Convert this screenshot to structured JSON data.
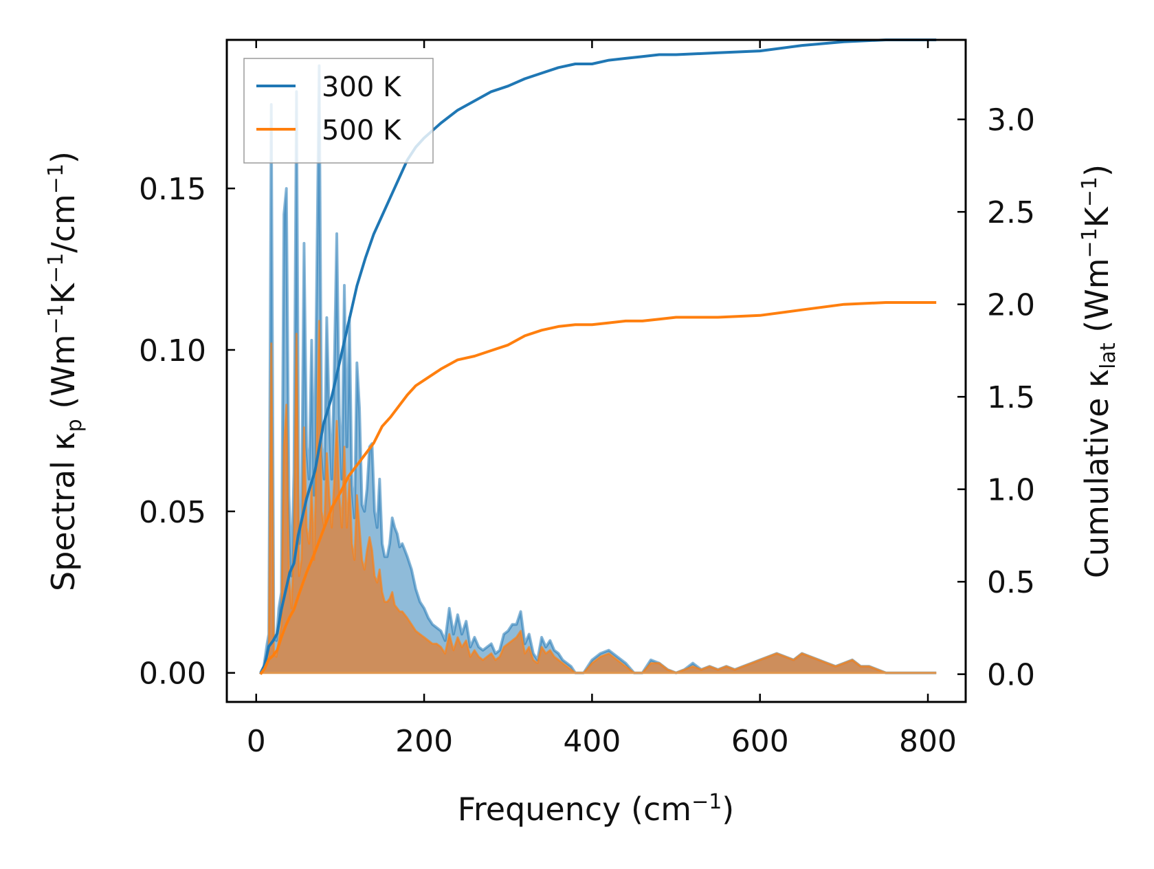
{
  "chart_data": {
    "type": "line",
    "title": "",
    "xlabel": {
      "main": "Frequency (cm",
      "sup": "−1",
      "tail": ")"
    },
    "ylabel_left": {
      "p1": "Spectral κ",
      "sub1": "p",
      "p2": " (Wm",
      "sup1": "−1",
      "p3": "K",
      "sup2": "−1",
      "p4": "/cm",
      "sup3": "−1",
      "p5": ")"
    },
    "ylabel_right": {
      "p1": "Cumulative κ",
      "sub1": "lat",
      "p2": " (Wm",
      "sup1": "−1",
      "p3": "K",
      "sup2": "−1",
      "p5": ")"
    },
    "xlim": [
      -35,
      845
    ],
    "ylim_left": [
      -0.009,
      0.196
    ],
    "ylim_right": [
      -0.15,
      3.43
    ],
    "xticks": [
      0,
      200,
      400,
      600,
      800
    ],
    "xtick_labels": [
      "0",
      "200",
      "400",
      "600",
      "800"
    ],
    "yticks_left": [
      0.0,
      0.05,
      0.1,
      0.15
    ],
    "ytick_labels_left": [
      "0.00",
      "0.05",
      "0.10",
      "0.15"
    ],
    "yticks_right": [
      0.0,
      0.5,
      1.0,
      1.5,
      2.0,
      2.5,
      3.0
    ],
    "ytick_labels_right": [
      "0.0",
      "0.5",
      "1.0",
      "1.5",
      "2.0",
      "2.5",
      "3.0"
    ],
    "legend": {
      "placement": "top-left",
      "entries": [
        "300 K",
        "500 K"
      ]
    },
    "colors": {
      "300K": "#1f77b4",
      "500K": "#ff7f0e",
      "spectral_300K_fill": "#1f77b4",
      "spectral_500K_fill": "#d6884a"
    },
    "series": [
      {
        "name": "300 K",
        "kind": "spectral",
        "axis": "left",
        "x": [
          5,
          9,
          13,
          15,
          18,
          21,
          24,
          27,
          30,
          33,
          36,
          39,
          42,
          45,
          48,
          51,
          54,
          57,
          60,
          63,
          66,
          69,
          72,
          75,
          78,
          81,
          84,
          87,
          90,
          93,
          96,
          99,
          102,
          105,
          108,
          111,
          114,
          117,
          120,
          123,
          126,
          129,
          132,
          135,
          138,
          141,
          144,
          147,
          150,
          153,
          156,
          159,
          162,
          165,
          168,
          171,
          174,
          177,
          180,
          185,
          190,
          195,
          200,
          205,
          210,
          215,
          220,
          225,
          230,
          235,
          240,
          245,
          250,
          255,
          260,
          265,
          270,
          275,
          280,
          285,
          290,
          295,
          300,
          305,
          310,
          315,
          320,
          325,
          330,
          335,
          340,
          345,
          350,
          355,
          360,
          365,
          370,
          375,
          380,
          390,
          400,
          410,
          420,
          430,
          440,
          450,
          460,
          470,
          480,
          490,
          500,
          510,
          520,
          530,
          540,
          550,
          560,
          570,
          580,
          590,
          600,
          610,
          620,
          630,
          640,
          650,
          660,
          670,
          680,
          690,
          700,
          710,
          720,
          730,
          740,
          750,
          760,
          770,
          780,
          790,
          800,
          810
        ],
        "values": [
          0.0,
          0.002,
          0.009,
          0.012,
          0.176,
          0.011,
          0.01,
          0.02,
          0.025,
          0.142,
          0.15,
          0.055,
          0.03,
          0.062,
          0.18,
          0.04,
          0.05,
          0.133,
          0.07,
          0.06,
          0.103,
          0.055,
          0.12,
          0.188,
          0.07,
          0.06,
          0.11,
          0.08,
          0.06,
          0.095,
          0.136,
          0.08,
          0.06,
          0.12,
          0.07,
          0.11,
          0.058,
          0.048,
          0.096,
          0.082,
          0.052,
          0.05,
          0.057,
          0.07,
          0.071,
          0.05,
          0.045,
          0.06,
          0.04,
          0.036,
          0.036,
          0.04,
          0.048,
          0.045,
          0.043,
          0.039,
          0.04,
          0.038,
          0.036,
          0.032,
          0.026,
          0.022,
          0.02,
          0.017,
          0.015,
          0.014,
          0.013,
          0.01,
          0.02,
          0.012,
          0.018,
          0.012,
          0.016,
          0.008,
          0.011,
          0.008,
          0.007,
          0.008,
          0.009,
          0.006,
          0.007,
          0.012,
          0.013,
          0.015,
          0.015,
          0.019,
          0.009,
          0.012,
          0.006,
          0.004,
          0.011,
          0.008,
          0.01,
          0.007,
          0.006,
          0.004,
          0.003,
          0.002,
          0.0,
          0.0,
          0.004,
          0.006,
          0.007,
          0.005,
          0.003,
          0.0,
          0.0,
          0.004,
          0.003,
          0.001,
          0.0,
          0.001,
          0.003,
          0.001,
          0.002,
          0.001,
          0.002,
          0.001,
          0.002,
          0.003,
          0.004,
          0.005,
          0.006,
          0.005,
          0.004,
          0.006,
          0.005,
          0.004,
          0.003,
          0.002,
          0.003,
          0.004,
          0.002,
          0.002,
          0.001,
          0.0,
          0.0,
          0.0,
          0.0,
          0.0,
          0.0,
          0.0
        ]
      },
      {
        "name": "500 K",
        "kind": "spectral",
        "axis": "left",
        "x": [
          5,
          9,
          13,
          15,
          18,
          21,
          24,
          27,
          30,
          33,
          36,
          39,
          42,
          45,
          48,
          51,
          54,
          57,
          60,
          63,
          66,
          69,
          72,
          75,
          78,
          81,
          84,
          87,
          90,
          93,
          96,
          99,
          102,
          105,
          108,
          111,
          114,
          117,
          120,
          123,
          126,
          129,
          132,
          135,
          138,
          141,
          144,
          147,
          150,
          153,
          156,
          159,
          162,
          165,
          168,
          171,
          174,
          177,
          180,
          185,
          190,
          195,
          200,
          205,
          210,
          215,
          220,
          225,
          230,
          235,
          240,
          245,
          250,
          255,
          260,
          265,
          270,
          275,
          280,
          285,
          290,
          295,
          300,
          305,
          310,
          315,
          320,
          325,
          330,
          335,
          340,
          345,
          350,
          355,
          360,
          365,
          370,
          375,
          380,
          390,
          400,
          410,
          420,
          430,
          440,
          450,
          460,
          470,
          480,
          490,
          500,
          510,
          520,
          530,
          540,
          550,
          560,
          570,
          580,
          590,
          600,
          610,
          620,
          630,
          640,
          650,
          660,
          670,
          680,
          690,
          700,
          710,
          720,
          730,
          740,
          750,
          760,
          770,
          780,
          790,
          800,
          810
        ],
        "values": [
          0.0,
          0.001,
          0.004,
          0.005,
          0.102,
          0.006,
          0.005,
          0.01,
          0.015,
          0.07,
          0.083,
          0.03,
          0.02,
          0.04,
          0.105,
          0.03,
          0.035,
          0.076,
          0.045,
          0.04,
          0.058,
          0.035,
          0.07,
          0.109,
          0.05,
          0.045,
          0.068,
          0.055,
          0.045,
          0.06,
          0.078,
          0.055,
          0.045,
          0.07,
          0.045,
          0.06,
          0.04,
          0.035,
          0.055,
          0.045,
          0.035,
          0.032,
          0.038,
          0.042,
          0.038,
          0.03,
          0.028,
          0.032,
          0.025,
          0.022,
          0.022,
          0.023,
          0.025,
          0.021,
          0.02,
          0.019,
          0.019,
          0.018,
          0.017,
          0.015,
          0.013,
          0.012,
          0.011,
          0.01,
          0.009,
          0.009,
          0.008,
          0.006,
          0.012,
          0.007,
          0.011,
          0.008,
          0.01,
          0.005,
          0.007,
          0.005,
          0.004,
          0.005,
          0.006,
          0.004,
          0.005,
          0.008,
          0.009,
          0.01,
          0.011,
          0.013,
          0.006,
          0.008,
          0.004,
          0.003,
          0.008,
          0.006,
          0.007,
          0.005,
          0.004,
          0.003,
          0.002,
          0.001,
          0.0,
          0.0,
          0.003,
          0.005,
          0.006,
          0.004,
          0.002,
          0.0,
          0.0,
          0.003,
          0.003,
          0.001,
          0.0,
          0.001,
          0.002,
          0.001,
          0.002,
          0.001,
          0.002,
          0.001,
          0.002,
          0.003,
          0.004,
          0.005,
          0.006,
          0.005,
          0.004,
          0.006,
          0.005,
          0.004,
          0.003,
          0.002,
          0.003,
          0.004,
          0.002,
          0.002,
          0.001,
          0.0,
          0.0,
          0.0,
          0.0,
          0.0,
          0.0,
          0.0
        ]
      },
      {
        "name": "300 K",
        "kind": "cumulative",
        "axis": "right",
        "x": [
          5,
          10,
          15,
          20,
          25,
          30,
          35,
          40,
          45,
          50,
          60,
          70,
          80,
          90,
          100,
          110,
          120,
          130,
          140,
          150,
          160,
          170,
          180,
          190,
          200,
          220,
          240,
          260,
          280,
          300,
          320,
          340,
          360,
          380,
          400,
          420,
          440,
          460,
          480,
          500,
          550,
          600,
          650,
          700,
          750,
          810
        ],
        "values": [
          0.0,
          0.05,
          0.15,
          0.18,
          0.22,
          0.35,
          0.45,
          0.55,
          0.6,
          0.75,
          0.95,
          1.1,
          1.35,
          1.5,
          1.7,
          1.9,
          2.1,
          2.25,
          2.38,
          2.48,
          2.58,
          2.68,
          2.78,
          2.85,
          2.9,
          2.98,
          3.05,
          3.1,
          3.15,
          3.18,
          3.22,
          3.25,
          3.28,
          3.3,
          3.3,
          3.32,
          3.33,
          3.34,
          3.35,
          3.35,
          3.36,
          3.37,
          3.4,
          3.42,
          3.43,
          3.43
        ]
      },
      {
        "name": "500 K",
        "kind": "cumulative",
        "axis": "right",
        "x": [
          5,
          10,
          15,
          20,
          25,
          30,
          35,
          40,
          45,
          50,
          60,
          70,
          80,
          90,
          100,
          110,
          120,
          130,
          140,
          150,
          160,
          170,
          180,
          190,
          200,
          220,
          240,
          260,
          280,
          300,
          320,
          340,
          360,
          380,
          400,
          420,
          440,
          460,
          480,
          500,
          550,
          600,
          650,
          700,
          750,
          810
        ],
        "values": [
          0.0,
          0.03,
          0.08,
          0.1,
          0.13,
          0.2,
          0.26,
          0.31,
          0.35,
          0.42,
          0.55,
          0.66,
          0.78,
          0.9,
          0.98,
          1.07,
          1.13,
          1.19,
          1.25,
          1.34,
          1.39,
          1.45,
          1.51,
          1.56,
          1.59,
          1.65,
          1.7,
          1.72,
          1.75,
          1.78,
          1.83,
          1.86,
          1.88,
          1.89,
          1.89,
          1.9,
          1.91,
          1.91,
          1.92,
          1.93,
          1.93,
          1.94,
          1.97,
          2.0,
          2.01,
          2.01
        ]
      }
    ]
  }
}
